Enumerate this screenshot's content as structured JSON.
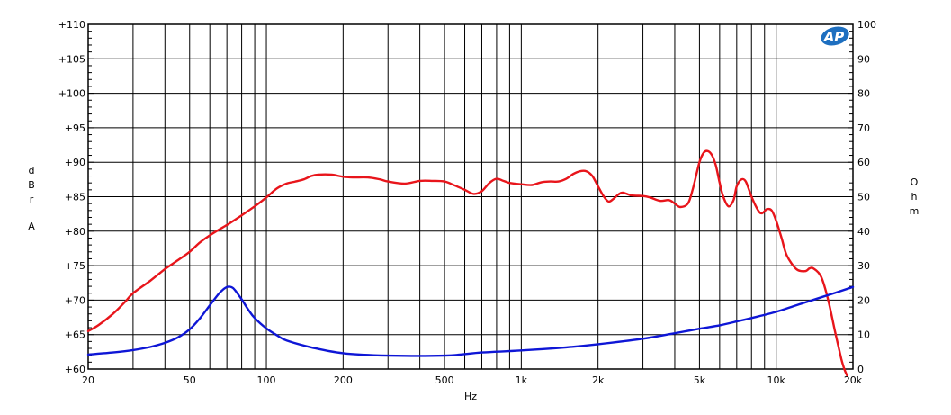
{
  "chart_data": {
    "type": "line",
    "xlabel": "Hz",
    "ylabel_left": "dBrA",
    "ylabel_right": "Ohm",
    "x_scale": "log",
    "xlim": [
      20,
      20000
    ],
    "ylim_left": [
      60,
      110
    ],
    "ylim_right": [
      0,
      100
    ],
    "grid": true,
    "x_tick_labels": [
      {
        "value": 20,
        "label": "20"
      },
      {
        "value": 50,
        "label": "50"
      },
      {
        "value": 100,
        "label": "100"
      },
      {
        "value": 200,
        "label": "200"
      },
      {
        "value": 500,
        "label": "500"
      },
      {
        "value": 1000,
        "label": "1k"
      },
      {
        "value": 2000,
        "label": "2k"
      },
      {
        "value": 5000,
        "label": "5k"
      },
      {
        "value": 10000,
        "label": "10k"
      },
      {
        "value": 20000,
        "label": "20k"
      }
    ],
    "y_left_tick_labels": [
      {
        "value": 60,
        "label": "+60"
      },
      {
        "value": 65,
        "label": "+65"
      },
      {
        "value": 70,
        "label": "+70"
      },
      {
        "value": 75,
        "label": "+75"
      },
      {
        "value": 80,
        "label": "+80"
      },
      {
        "value": 85,
        "label": "+85"
      },
      {
        "value": 90,
        "label": "+90"
      },
      {
        "value": 95,
        "label": "+95"
      },
      {
        "value": 100,
        "label": "+100"
      },
      {
        "value": 105,
        "label": "+105"
      },
      {
        "value": 110,
        "label": "+110"
      }
    ],
    "y_right_tick_labels": [
      {
        "value": 0,
        "label": "0"
      },
      {
        "value": 10,
        "label": "10"
      },
      {
        "value": 20,
        "label": "20"
      },
      {
        "value": 30,
        "label": "30"
      },
      {
        "value": 40,
        "label": "40"
      },
      {
        "value": 50,
        "label": "50"
      },
      {
        "value": 60,
        "label": "60"
      },
      {
        "value": 70,
        "label": "70"
      },
      {
        "value": 80,
        "label": "80"
      },
      {
        "value": 90,
        "label": "90"
      },
      {
        "value": 100,
        "label": "100"
      }
    ],
    "series": [
      {
        "axis": "left",
        "color": "#e8151b",
        "x": [
          20,
          22,
          25,
          28,
          30,
          35,
          40,
          45,
          50,
          55,
          60,
          65,
          70,
          75,
          80,
          90,
          100,
          110,
          120,
          130,
          140,
          150,
          160,
          180,
          200,
          220,
          250,
          280,
          300,
          350,
          400,
          450,
          500,
          550,
          600,
          650,
          700,
          750,
          800,
          850,
          900,
          1000,
          1100,
          1200,
          1300,
          1400,
          1500,
          1600,
          1700,
          1800,
          1900,
          2000,
          2100,
          2200,
          2300,
          2400,
          2500,
          2700,
          3000,
          3200,
          3500,
          3800,
          4000,
          4200,
          4500,
          4700,
          5000,
          5200,
          5400,
          5600,
          5800,
          6000,
          6200,
          6500,
          6800,
          7000,
          7300,
          7600,
          8000,
          8500,
          8800,
          9200,
          9600,
          10000,
          10500,
          11000,
          12000,
          13000,
          13500,
          14000,
          15000,
          16000,
          17000,
          18000,
          18500,
          19000
        ],
        "y": [
          65.5,
          66.4,
          68.0,
          69.8,
          71.0,
          72.8,
          74.5,
          75.8,
          77.0,
          78.4,
          79.4,
          80.2,
          80.9,
          81.6,
          82.3,
          83.6,
          84.9,
          86.2,
          86.9,
          87.2,
          87.5,
          88.0,
          88.2,
          88.2,
          87.9,
          87.8,
          87.8,
          87.5,
          87.2,
          86.9,
          87.3,
          87.3,
          87.2,
          86.6,
          86.0,
          85.4,
          85.8,
          87.0,
          87.6,
          87.3,
          87.0,
          86.8,
          86.7,
          87.1,
          87.2,
          87.2,
          87.6,
          88.3,
          88.7,
          88.7,
          88.0,
          86.5,
          85.1,
          84.3,
          84.7,
          85.3,
          85.6,
          85.2,
          85.1,
          84.9,
          84.4,
          84.5,
          84.0,
          83.5,
          84.0,
          86.0,
          90.0,
          91.4,
          91.6,
          91.0,
          89.5,
          87.0,
          85.0,
          83.6,
          84.5,
          86.5,
          87.5,
          87.2,
          85.0,
          83.0,
          82.6,
          83.2,
          83.0,
          81.5,
          79.0,
          76.5,
          74.5,
          74.2,
          74.6,
          74.6,
          73.4,
          70.0,
          65.5,
          61.5,
          60.0,
          59.0
        ]
      },
      {
        "axis": "right",
        "color": "#0e16d6",
        "x": [
          20,
          25,
          30,
          35,
          40,
          45,
          50,
          55,
          60,
          65,
          68,
          70,
          72,
          74,
          76,
          80,
          85,
          90,
          100,
          110,
          120,
          150,
          200,
          300,
          500,
          700,
          1000,
          1500,
          2000,
          3000,
          4000,
          5000,
          6000,
          7000,
          8000,
          10000,
          12000,
          15000,
          20000
        ],
        "y": [
          4.2,
          4.8,
          5.5,
          6.4,
          7.6,
          9.2,
          11.5,
          14.8,
          18.5,
          21.8,
          23.2,
          23.8,
          23.9,
          23.5,
          22.5,
          20.2,
          17.2,
          14.8,
          11.8,
          9.8,
          8.3,
          6.3,
          4.6,
          3.9,
          3.9,
          4.8,
          5.4,
          6.3,
          7.2,
          8.8,
          10.4,
          11.7,
          12.7,
          13.8,
          14.8,
          16.6,
          18.5,
          20.8,
          23.8
        ]
      }
    ]
  },
  "logo": {
    "text": "AP",
    "color": "#1e6fc0"
  }
}
